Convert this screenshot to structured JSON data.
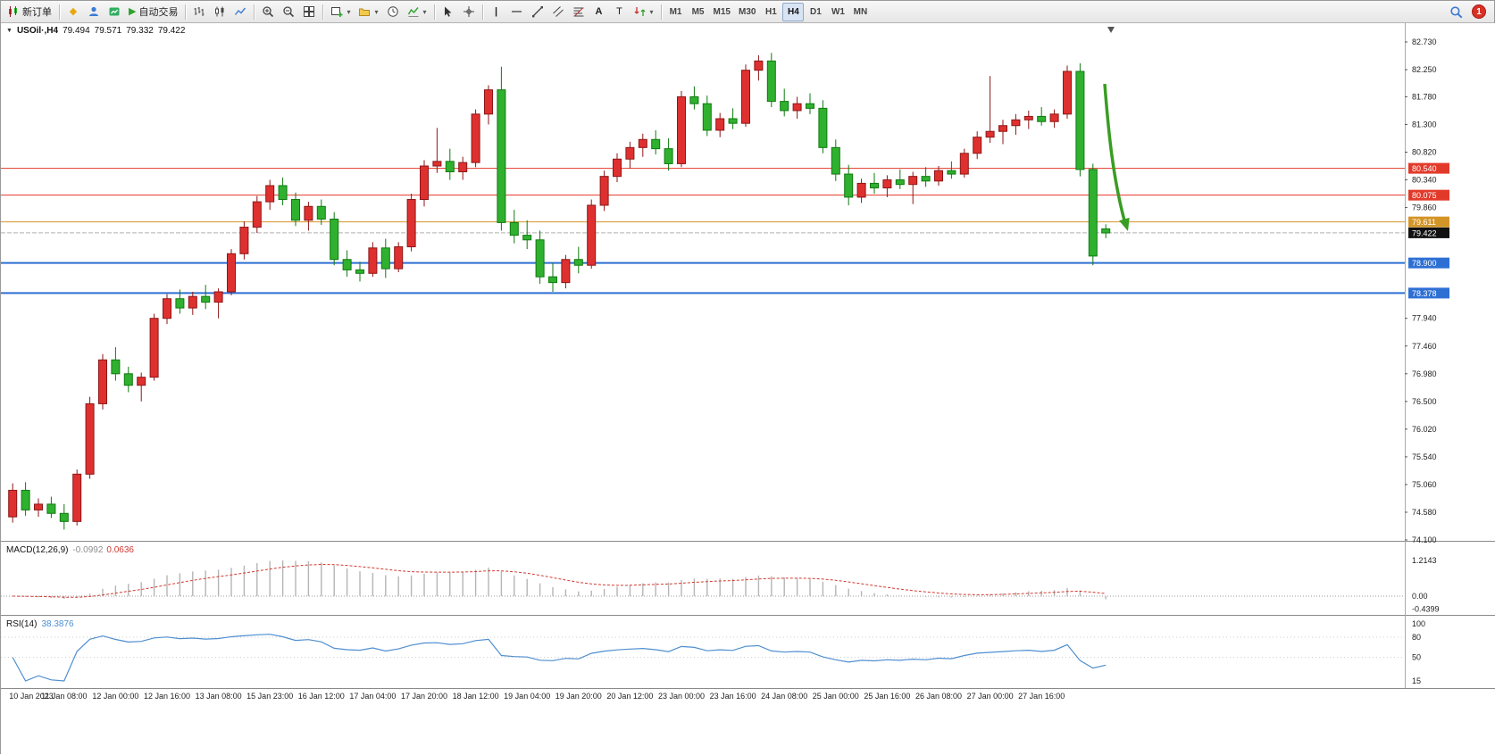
{
  "glyphs": {
    "caret": "▾",
    "diamond": "◆",
    "play": "▶",
    "vline": "|",
    "hline": "—",
    "text_tool": "A",
    "label_tool": "T"
  },
  "toolbar": {
    "new_order": "新订单",
    "autotrade": "自动交易",
    "timeframes": [
      "M1",
      "M5",
      "M15",
      "M30",
      "H1",
      "H4",
      "D1",
      "W1",
      "MN"
    ],
    "active_timeframe": "H4",
    "notification_count": "1"
  },
  "chart": {
    "title": {
      "symbol_period": "USOil·,H4",
      "open": "79.494",
      "high": "79.571",
      "low": "79.332",
      "close": "79.422"
    }
  },
  "chart_data": {
    "type": "candlestick",
    "symbol": "USOil",
    "timeframe": "H4",
    "colors": {
      "up": "#df3030",
      "up_border": "#8d1616",
      "down": "#2fb12f",
      "down_border": "#0f7a0f"
    },
    "candles_ohlc": [
      [
        74.5,
        75.08,
        74.4,
        74.96
      ],
      [
        74.96,
        75.1,
        74.52,
        74.62
      ],
      [
        74.62,
        74.82,
        74.5,
        74.72
      ],
      [
        74.72,
        74.85,
        74.48,
        74.56
      ],
      [
        74.56,
        74.72,
        74.28,
        74.42
      ],
      [
        74.42,
        75.32,
        74.35,
        75.24
      ],
      [
        75.24,
        76.58,
        75.16,
        76.46
      ],
      [
        76.46,
        77.32,
        76.36,
        77.22
      ],
      [
        77.22,
        77.44,
        76.86,
        76.98
      ],
      [
        76.98,
        77.1,
        76.66,
        76.78
      ],
      [
        76.78,
        77.0,
        76.5,
        76.92
      ],
      [
        76.92,
        78.02,
        76.86,
        77.94
      ],
      [
        77.94,
        78.36,
        77.84,
        78.28
      ],
      [
        78.28,
        78.44,
        78.02,
        78.12
      ],
      [
        78.12,
        78.4,
        78.0,
        78.32
      ],
      [
        78.32,
        78.52,
        78.1,
        78.22
      ],
      [
        78.22,
        78.46,
        77.94,
        78.4
      ],
      [
        78.4,
        79.14,
        78.34,
        79.06
      ],
      [
        79.06,
        79.62,
        78.96,
        79.52
      ],
      [
        79.52,
        80.06,
        79.42,
        79.96
      ],
      [
        79.96,
        80.34,
        79.82,
        80.24
      ],
      [
        80.24,
        80.38,
        79.9,
        80.0
      ],
      [
        80.0,
        80.12,
        79.54,
        79.64
      ],
      [
        79.64,
        79.96,
        79.46,
        79.88
      ],
      [
        79.88,
        80.0,
        79.56,
        79.66
      ],
      [
        79.66,
        79.78,
        78.86,
        78.96
      ],
      [
        78.96,
        79.12,
        78.66,
        78.78
      ],
      [
        78.78,
        78.92,
        78.58,
        78.72
      ],
      [
        78.72,
        79.26,
        78.66,
        79.16
      ],
      [
        79.16,
        79.32,
        78.64,
        78.8
      ],
      [
        78.8,
        79.26,
        78.74,
        79.18
      ],
      [
        79.18,
        80.1,
        79.1,
        80.0
      ],
      [
        80.0,
        80.68,
        79.88,
        80.58
      ],
      [
        80.58,
        81.24,
        80.46,
        80.66
      ],
      [
        80.66,
        80.88,
        80.34,
        80.48
      ],
      [
        80.48,
        80.74,
        80.34,
        80.64
      ],
      [
        80.64,
        81.56,
        80.56,
        81.48
      ],
      [
        81.48,
        81.98,
        81.3,
        81.9
      ],
      [
        81.9,
        82.3,
        79.46,
        79.6
      ],
      [
        79.6,
        79.82,
        79.24,
        79.38
      ],
      [
        79.38,
        79.64,
        79.14,
        79.3
      ],
      [
        79.3,
        79.46,
        78.54,
        78.66
      ],
      [
        78.66,
        78.9,
        78.4,
        78.56
      ],
      [
        78.56,
        79.04,
        78.46,
        78.96
      ],
      [
        78.96,
        79.18,
        78.72,
        78.86
      ],
      [
        78.86,
        80.0,
        78.8,
        79.9
      ],
      [
        79.9,
        80.5,
        79.8,
        80.4
      ],
      [
        80.4,
        80.8,
        80.3,
        80.7
      ],
      [
        80.7,
        81.0,
        80.54,
        80.9
      ],
      [
        80.9,
        81.14,
        80.74,
        81.04
      ],
      [
        81.04,
        81.2,
        80.78,
        80.88
      ],
      [
        80.88,
        81.06,
        80.5,
        80.62
      ],
      [
        80.62,
        81.88,
        80.56,
        81.78
      ],
      [
        81.78,
        81.96,
        81.56,
        81.66
      ],
      [
        81.66,
        81.8,
        81.1,
        81.2
      ],
      [
        81.2,
        81.5,
        81.08,
        81.4
      ],
      [
        81.4,
        81.58,
        81.22,
        81.32
      ],
      [
        81.32,
        82.34,
        81.26,
        82.24
      ],
      [
        82.24,
        82.5,
        82.06,
        82.4
      ],
      [
        82.4,
        82.54,
        81.6,
        81.7
      ],
      [
        81.7,
        81.92,
        81.44,
        81.54
      ],
      [
        81.54,
        81.78,
        81.4,
        81.66
      ],
      [
        81.66,
        81.84,
        81.48,
        81.58
      ],
      [
        81.58,
        81.72,
        80.8,
        80.9
      ],
      [
        80.9,
        81.04,
        80.32,
        80.44
      ],
      [
        80.44,
        80.6,
        79.9,
        80.04
      ],
      [
        80.04,
        80.36,
        79.94,
        80.28
      ],
      [
        80.28,
        80.46,
        80.1,
        80.2
      ],
      [
        80.2,
        80.42,
        80.04,
        80.34
      ],
      [
        80.34,
        80.52,
        80.18,
        80.26
      ],
      [
        80.26,
        80.48,
        79.92,
        80.4
      ],
      [
        80.4,
        80.56,
        80.22,
        80.32
      ],
      [
        80.32,
        80.58,
        80.24,
        80.5
      ],
      [
        80.5,
        80.66,
        80.36,
        80.44
      ],
      [
        80.44,
        80.88,
        80.38,
        80.8
      ],
      [
        80.8,
        81.18,
        80.7,
        81.08
      ],
      [
        81.08,
        82.14,
        80.98,
        81.18
      ],
      [
        81.18,
        81.38,
        80.96,
        81.28
      ],
      [
        81.28,
        81.48,
        81.12,
        81.38
      ],
      [
        81.38,
        81.54,
        81.22,
        81.44
      ],
      [
        81.44,
        81.6,
        81.28,
        81.35
      ],
      [
        81.35,
        81.56,
        81.24,
        81.48
      ],
      [
        81.48,
        82.32,
        81.4,
        82.22
      ],
      [
        82.22,
        82.36,
        80.4,
        80.52
      ],
      [
        80.52,
        80.62,
        78.86,
        79.02
      ],
      [
        79.49,
        79.57,
        79.33,
        79.42
      ]
    ],
    "price_axis_ticks": [
      "82.730",
      "82.250",
      "81.780",
      "81.300",
      "80.820",
      "80.340",
      "79.860",
      "77.940",
      "77.460",
      "76.980",
      "76.500",
      "76.020",
      "75.540",
      "75.060",
      "74.580",
      "74.100"
    ],
    "levels": [
      {
        "value": "80.540",
        "price": 80.54,
        "color": "#e23a2a",
        "width": 1
      },
      {
        "value": "80.075",
        "price": 80.075,
        "color": "#e23a2a",
        "width": 1
      },
      {
        "value": "79.611",
        "price": 79.611,
        "color": "#d49528",
        "width": 1
      },
      {
        "value": "78.900",
        "price": 78.9,
        "color": "#2e6fd4",
        "width": 2
      },
      {
        "value": "78.378",
        "price": 78.378,
        "color": "#2e6fd4",
        "width": 2
      }
    ],
    "current_price": {
      "value": "79.422",
      "price": 79.422,
      "label_bg": "#111111",
      "line_color": "#b0b0b0"
    },
    "annotations": [
      {
        "type": "arrow",
        "direction": "down",
        "color": "#3a9d23"
      }
    ],
    "indicators": {
      "macd": {
        "label": "MACD(12,26,9)",
        "value_main": "-0.0992",
        "value_signal": "0.0636",
        "params": [
          12,
          26,
          9
        ],
        "axis_labels": [
          "1.2143",
          "0.00",
          "-0.4399"
        ],
        "axis_values": [
          1.2143,
          0,
          -0.4399
        ],
        "histogram_color": "#b5b5b5",
        "signal_color": "#d03a30"
      },
      "rsi": {
        "label": "RSI(14)",
        "value": "38.3876",
        "period": 14,
        "axis_labels": [
          "100",
          "80",
          "50",
          "15"
        ],
        "axis_values": [
          100,
          80,
          50,
          15
        ],
        "line_color": "#4f8fd0"
      }
    },
    "time_axis_labels": [
      "10 Jan 2023",
      "11 Jan 08:00",
      "12 Jan 00:00",
      "12 Jan 16:00",
      "13 Jan 08:00",
      "15 Jan 23:00",
      "16 Jan 12:00",
      "17 Jan 04:00",
      "17 Jan 20:00",
      "18 Jan 12:00",
      "19 Jan 04:00",
      "19 Jan 20:00",
      "20 Jan 12:00",
      "23 Jan 00:00",
      "23 Jan 16:00",
      "24 Jan 08:00",
      "25 Jan 00:00",
      "25 Jan 16:00",
      "26 Jan 08:00",
      "27 Jan 00:00",
      "27 Jan 16:00"
    ]
  }
}
